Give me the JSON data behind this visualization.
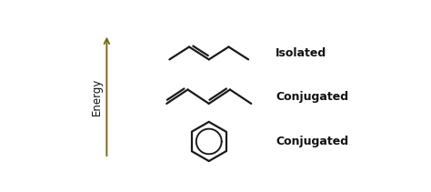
{
  "bg_color": "#ffffff",
  "arrow_color": "#7a6a1a",
  "molecule_color": "#1a1a1a",
  "text_color": "#111111",
  "energy_label": "Energy",
  "label1": "Isolated",
  "label2": "Conjugated",
  "label3": "Conjugated",
  "lw": 1.6,
  "font_size_label": 9,
  "font_size_energy": 8.5
}
